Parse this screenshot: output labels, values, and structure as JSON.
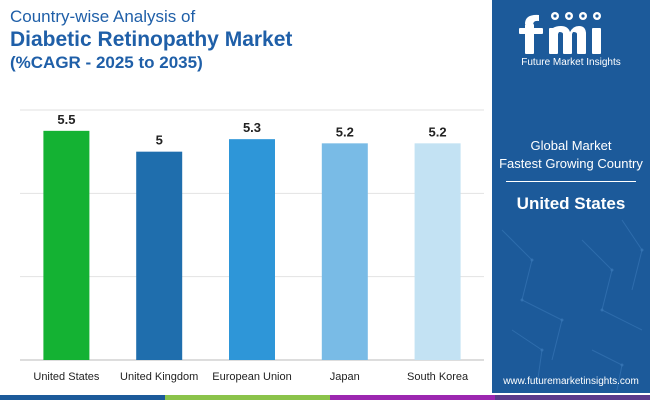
{
  "title": {
    "line1": "Country-wise Analysis of",
    "line2": "Diabetic Retinopathy Market",
    "line3": "(%CAGR - 2025 to 2035)"
  },
  "chart_data": {
    "type": "bar",
    "title": "Diabetic Retinopathy Market (%CAGR - 2025 to 2035)",
    "categories": [
      "United States",
      "United Kingdom",
      "European Union",
      "Japan",
      "South Korea"
    ],
    "values": [
      5.5,
      5,
      5.3,
      5.2,
      5.2
    ],
    "value_labels": [
      "5.5",
      "5",
      "5.3",
      "5.2",
      "5.2"
    ],
    "bar_colors": [
      "#14b233",
      "#1f6ead",
      "#2e96d8",
      "#79bbe6",
      "#c3e2f3"
    ],
    "ylim": [
      0,
      6
    ],
    "grid": true,
    "xlabel": "",
    "ylabel": ""
  },
  "panel": {
    "logo_text": "Future Market Insights",
    "global_market": "Global Market",
    "fastest_growing": "Fastest Growing Country",
    "highlight_country": "United States",
    "website": "www.futuremarketinsights.com"
  },
  "colors": {
    "panel_bg": "#1c5a9a",
    "title": "#1f5fa8",
    "strip": [
      "#1c5a9a",
      "#8bc34a",
      "#9c27b0",
      "#5b3b8c"
    ]
  },
  "icons": [
    "fmi-logo-icon"
  ]
}
